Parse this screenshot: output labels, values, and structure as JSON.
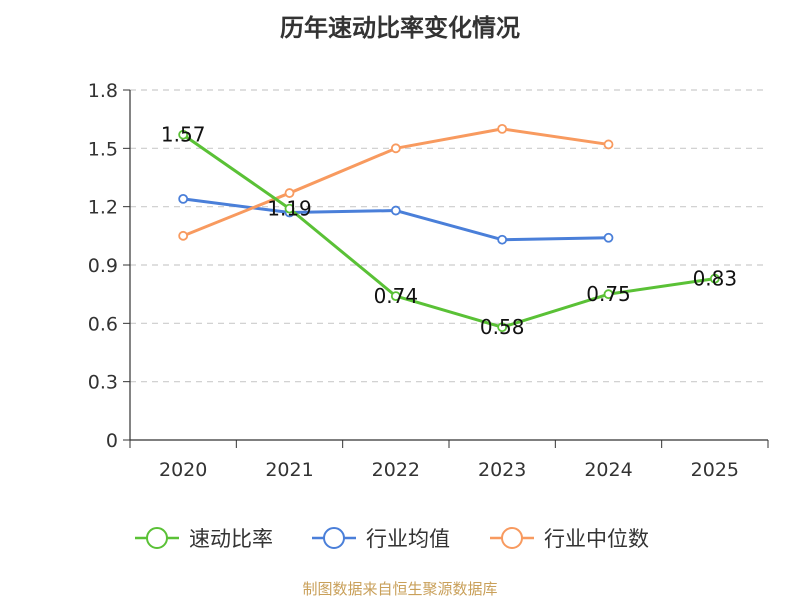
{
  "chart_data": {
    "type": "line",
    "title": "历年速动比率变化情况",
    "categories": [
      "2020",
      "2021",
      "2022",
      "2023",
      "2024",
      "2025"
    ],
    "ylim": [
      0,
      1.8
    ],
    "yticks": [
      "0",
      "0.3",
      "0.6",
      "0.9",
      "1.2",
      "1.5",
      "1.8"
    ],
    "grid": true,
    "legend_position": "bottom",
    "series": [
      {
        "name": "速动比率",
        "color": "#5ac136",
        "values": [
          1.57,
          1.19,
          0.74,
          0.58,
          0.75,
          0.83
        ],
        "labels": [
          "1.57",
          "1.19",
          "0.74",
          "0.58",
          "0.75",
          "0.83"
        ]
      },
      {
        "name": "行业均值",
        "color": "#4a7fd9",
        "values": [
          1.24,
          1.17,
          1.18,
          1.03,
          1.04,
          null
        ]
      },
      {
        "name": "行业中位数",
        "color": "#f89a5f",
        "values": [
          1.05,
          1.27,
          1.5,
          1.6,
          1.52,
          null
        ]
      }
    ]
  },
  "source": "制图数据来自恒生聚源数据库"
}
